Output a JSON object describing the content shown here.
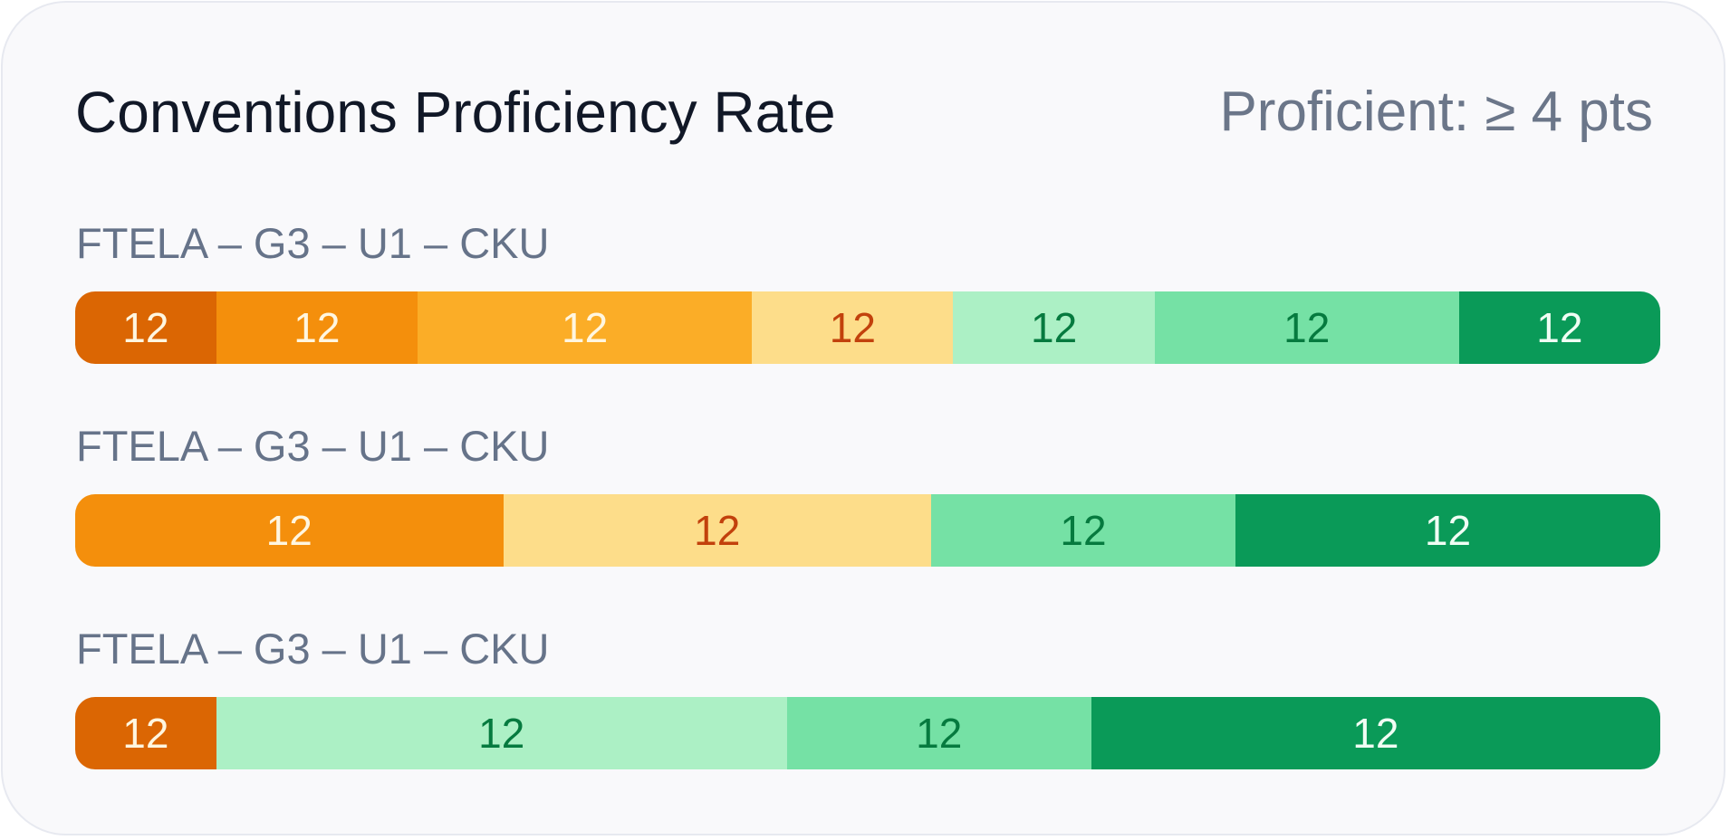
{
  "card": {
    "title": "Conventions Proficiency Rate",
    "subtitle": "Proficient: ≥ 4 pts"
  },
  "colors": {
    "1": {
      "fill": "#db6603",
      "text": "#fff6e0"
    },
    "2": {
      "fill": "#f48f0c",
      "text": "#fff6e0"
    },
    "3": {
      "fill": "#fbad27",
      "text": "#fff6e0"
    },
    "4": {
      "fill": "#fddd8a",
      "text": "#c2410c"
    },
    "5": {
      "fill": "#acf0c5",
      "text": "#067a3f"
    },
    "6": {
      "fill": "#75e1a5",
      "text": "#067a3f"
    },
    "7": {
      "fill": "#0a9a58",
      "text": "#f0fdf4"
    }
  },
  "chart_data": {
    "type": "bar",
    "orientation": "horizontal-stacked-100",
    "title": "Conventions Proficiency Rate",
    "subtitle": "Proficient: ≥ 4 pts",
    "rows": [
      {
        "label": "FTELA – G3 – U1 – CKU",
        "segments": [
          {
            "level": 1,
            "share": 8.9,
            "value": "12"
          },
          {
            "level": 2,
            "share": 12.7,
            "value": "12"
          },
          {
            "level": 3,
            "share": 21.1,
            "value": "12"
          },
          {
            "level": 4,
            "share": 12.7,
            "value": "12"
          },
          {
            "level": 5,
            "share": 12.7,
            "value": "12"
          },
          {
            "level": 6,
            "share": 19.2,
            "value": "12"
          },
          {
            "level": 7,
            "share": 12.7,
            "value": "12"
          }
        ]
      },
      {
        "label": "FTELA – G3 – U1 – CKU",
        "segments": [
          {
            "level": 2,
            "share": 27.0,
            "value": "12"
          },
          {
            "level": 4,
            "share": 27.0,
            "value": "12"
          },
          {
            "level": 6,
            "share": 19.2,
            "value": "12"
          },
          {
            "level": 7,
            "share": 26.8,
            "value": "12"
          }
        ]
      },
      {
        "label": "FTELA – G3 – U1 – CKU",
        "segments": [
          {
            "level": 1,
            "share": 8.9,
            "value": "12"
          },
          {
            "level": 5,
            "share": 36.0,
            "value": "12"
          },
          {
            "level": 6,
            "share": 19.2,
            "value": "12"
          },
          {
            "level": 7,
            "share": 35.9,
            "value": "12"
          }
        ]
      }
    ]
  }
}
